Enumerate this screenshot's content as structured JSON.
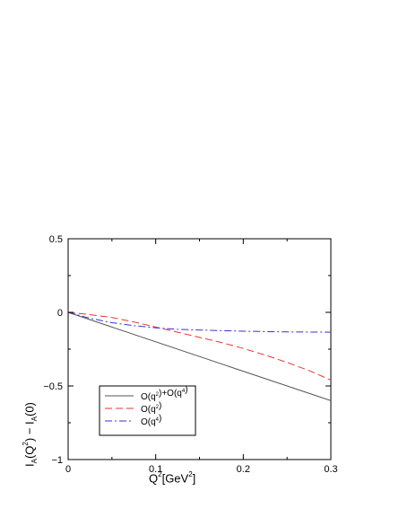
{
  "chart_data": {
    "type": "line",
    "xlabel": "Q²[GeV²]",
    "ylabel": "I_A(Q²) − I_A(0)",
    "xlim": [
      0,
      0.3
    ],
    "ylim": [
      -1,
      0.5
    ],
    "xticks": [
      0,
      0.1,
      0.2,
      0.3
    ],
    "xtick_labels": [
      "0",
      "0.1",
      "0.2",
      "0.3"
    ],
    "yticks": [
      -1,
      -0.5,
      0,
      0.5
    ],
    "ytick_labels": [
      "−1",
      "−0.5",
      "0",
      "0.5"
    ],
    "legend_position": "lower-left",
    "series": [
      {
        "name": "O(q²)+O(q⁴)",
        "legend_main": "O(q",
        "legend_sup1": "2",
        "legend_mid": ")+O(q",
        "legend_sup2": "4",
        "legend_end": ")",
        "color": "#555555",
        "style": "solid",
        "x": [
          0,
          0.05,
          0.1,
          0.15,
          0.2,
          0.25,
          0.3
        ],
        "y": [
          0,
          -0.1,
          -0.2,
          -0.3,
          -0.4,
          -0.5,
          -0.6
        ]
      },
      {
        "name": "O(q²)",
        "legend_main": "O(q",
        "legend_sup1": "2",
        "legend_end": ")",
        "color": "#ee3333",
        "style": "dashed",
        "x": [
          0,
          0.025,
          0.05,
          0.075,
          0.1,
          0.125,
          0.15,
          0.175,
          0.2,
          0.225,
          0.25,
          0.275,
          0.3
        ],
        "y": [
          0,
          -0.015,
          -0.035,
          -0.065,
          -0.1,
          -0.135,
          -0.17,
          -0.205,
          -0.245,
          -0.29,
          -0.34,
          -0.395,
          -0.46
        ]
      },
      {
        "name": "O(q⁴)",
        "legend_main": "O(q",
        "legend_sup1": "4",
        "legend_end": ")",
        "color": "#3333dd",
        "style": "dashdot",
        "x": [
          0,
          0.025,
          0.05,
          0.075,
          0.1,
          0.125,
          0.15,
          0.2,
          0.25,
          0.3
        ],
        "y": [
          0,
          -0.04,
          -0.07,
          -0.09,
          -0.105,
          -0.115,
          -0.12,
          -0.128,
          -0.133,
          -0.135
        ]
      }
    ]
  }
}
